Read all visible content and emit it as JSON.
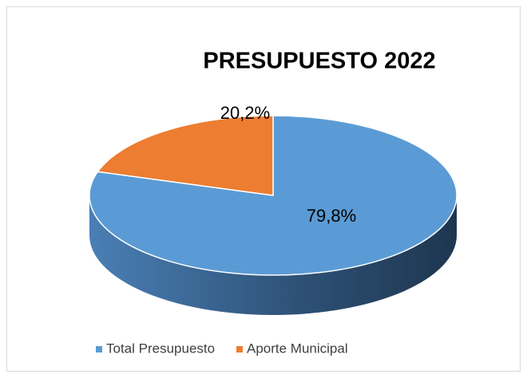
{
  "chart_data": {
    "type": "pie",
    "title": "PRESUPUESTO 2022",
    "categories": [
      "Total Presupuesto",
      "Aporte Municipal"
    ],
    "values": [
      79.8,
      20.2
    ],
    "value_labels": [
      "79,8%",
      "20,2%"
    ],
    "colors": [
      "#5b9bd5",
      "#ed7d31"
    ],
    "legend": "bottom"
  }
}
